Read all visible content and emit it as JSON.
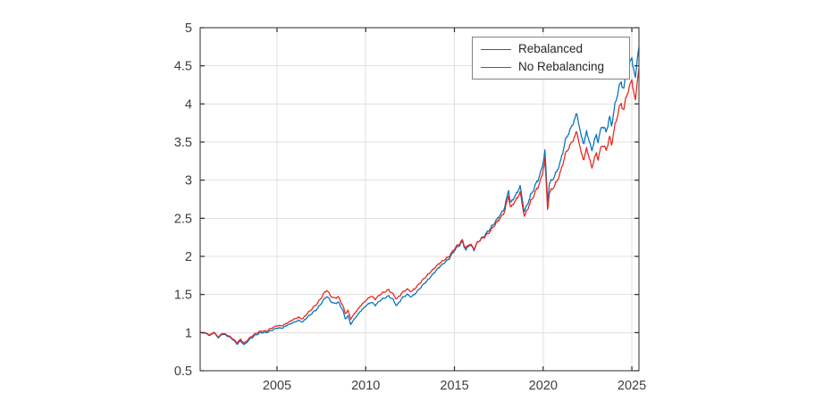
{
  "window": {
    "background": "#ffffff"
  },
  "chart_data": {
    "type": "line",
    "title": "",
    "xlabel": "",
    "ylabel": "",
    "xlim": [
      2000.67,
      2025.4
    ],
    "ylim": [
      0.5,
      5.0
    ],
    "grid": true,
    "axis_color": "#2b2b2b",
    "grid_color": "#e0e0e0",
    "tick_label_color": "#3d3d3d",
    "legend": {
      "position": "top-right",
      "border_color": "#828282",
      "background": "#ffffff"
    },
    "x_ticks": {
      "values": [
        2005,
        2010,
        2015,
        2020,
        2025
      ],
      "labels": [
        "2005",
        "2010",
        "2015",
        "2020",
        "2025"
      ]
    },
    "y_ticks": {
      "values": [
        0.5,
        1,
        1.5,
        2,
        2.5,
        3,
        3.5,
        4,
        4.5,
        5
      ],
      "labels": [
        "0.5",
        "1",
        "1.5",
        "2",
        "2.5",
        "3",
        "3.5",
        "4",
        "4.5",
        "5"
      ]
    },
    "jitter": 0.01,
    "x": [
      2000.7,
      2001.0,
      2001.2,
      2001.45,
      2001.7,
      2001.9,
      2002.1,
      2002.4,
      2002.6,
      2002.75,
      2002.95,
      2003.15,
      2003.5,
      2003.8,
      2004.1,
      2004.4,
      2004.7,
      2005.0,
      2005.3,
      2005.6,
      2005.9,
      2006.2,
      2006.45,
      2006.7,
      2007.0,
      2007.3,
      2007.6,
      2007.8,
      2008.0,
      2008.2,
      2008.45,
      2008.7,
      2008.85,
      2009.0,
      2009.15,
      2009.4,
      2009.7,
      2010.0,
      2010.3,
      2010.55,
      2010.8,
      2011.1,
      2011.3,
      2011.55,
      2011.75,
      2012.0,
      2012.3,
      2012.6,
      2012.9,
      2013.2,
      2013.5,
      2013.8,
      2014.1,
      2014.4,
      2014.7,
      2015.0,
      2015.2,
      2015.45,
      2015.65,
      2015.85,
      2016.1,
      2016.35,
      2016.6,
      2016.9,
      2017.2,
      2017.5,
      2017.8,
      2018.05,
      2018.15,
      2018.45,
      2018.7,
      2018.95,
      2019.1,
      2019.3,
      2019.6,
      2019.9,
      2020.1,
      2020.25,
      2020.35,
      2020.5,
      2020.75,
      2021.0,
      2021.25,
      2021.5,
      2021.7,
      2021.9,
      2022.1,
      2022.3,
      2022.45,
      2022.6,
      2022.75,
      2023.0,
      2023.1,
      2023.3,
      2023.55,
      2023.75,
      2023.85,
      2024.05,
      2024.25,
      2024.4,
      2024.55,
      2024.7,
      2024.85,
      2025.0,
      2025.1,
      2025.2,
      2025.3,
      2025.4
    ],
    "series": [
      {
        "name": "Rebalanced",
        "color": "#0072bd",
        "values": [
          1.0,
          0.99,
          0.96,
          1.0,
          0.93,
          0.98,
          0.97,
          0.93,
          0.89,
          0.85,
          0.89,
          0.84,
          0.92,
          0.97,
          1.0,
          1.0,
          1.03,
          1.06,
          1.06,
          1.1,
          1.13,
          1.16,
          1.14,
          1.2,
          1.26,
          1.32,
          1.42,
          1.48,
          1.42,
          1.38,
          1.4,
          1.3,
          1.18,
          1.22,
          1.11,
          1.19,
          1.28,
          1.35,
          1.4,
          1.36,
          1.42,
          1.46,
          1.48,
          1.43,
          1.35,
          1.44,
          1.5,
          1.47,
          1.54,
          1.62,
          1.69,
          1.77,
          1.85,
          1.91,
          1.97,
          2.08,
          2.13,
          2.19,
          2.08,
          2.16,
          2.09,
          2.2,
          2.25,
          2.33,
          2.42,
          2.52,
          2.62,
          2.87,
          2.7,
          2.8,
          2.92,
          2.58,
          2.68,
          2.8,
          2.95,
          3.12,
          3.38,
          2.73,
          2.95,
          3.0,
          3.1,
          3.26,
          3.52,
          3.65,
          3.75,
          3.88,
          3.62,
          3.47,
          3.65,
          3.5,
          3.4,
          3.6,
          3.5,
          3.72,
          3.64,
          3.82,
          3.72,
          3.98,
          4.2,
          4.28,
          4.2,
          4.42,
          4.5,
          4.62,
          4.45,
          4.32,
          4.6,
          4.75
        ]
      },
      {
        "name": "No Rebalancing",
        "color": "#e8241b",
        "values": [
          1.0,
          0.995,
          0.97,
          1.005,
          0.94,
          0.99,
          0.98,
          0.94,
          0.9,
          0.87,
          0.91,
          0.86,
          0.94,
          0.99,
          1.02,
          1.02,
          1.06,
          1.09,
          1.09,
          1.13,
          1.17,
          1.2,
          1.18,
          1.25,
          1.32,
          1.39,
          1.5,
          1.56,
          1.49,
          1.45,
          1.47,
          1.36,
          1.25,
          1.29,
          1.18,
          1.26,
          1.35,
          1.42,
          1.48,
          1.44,
          1.5,
          1.54,
          1.56,
          1.5,
          1.44,
          1.51,
          1.57,
          1.54,
          1.61,
          1.69,
          1.76,
          1.83,
          1.9,
          1.95,
          2.0,
          2.1,
          2.15,
          2.21,
          2.1,
          2.17,
          2.1,
          2.2,
          2.24,
          2.3,
          2.39,
          2.48,
          2.57,
          2.8,
          2.64,
          2.73,
          2.84,
          2.52,
          2.61,
          2.72,
          2.86,
          3.02,
          3.27,
          2.62,
          2.83,
          2.88,
          2.97,
          3.12,
          3.34,
          3.45,
          3.53,
          3.64,
          3.4,
          3.26,
          3.43,
          3.28,
          3.17,
          3.36,
          3.27,
          3.47,
          3.4,
          3.56,
          3.47,
          3.71,
          3.92,
          4.0,
          3.92,
          4.12,
          4.2,
          4.33,
          4.16,
          4.03,
          4.3,
          4.46
        ]
      }
    ]
  }
}
